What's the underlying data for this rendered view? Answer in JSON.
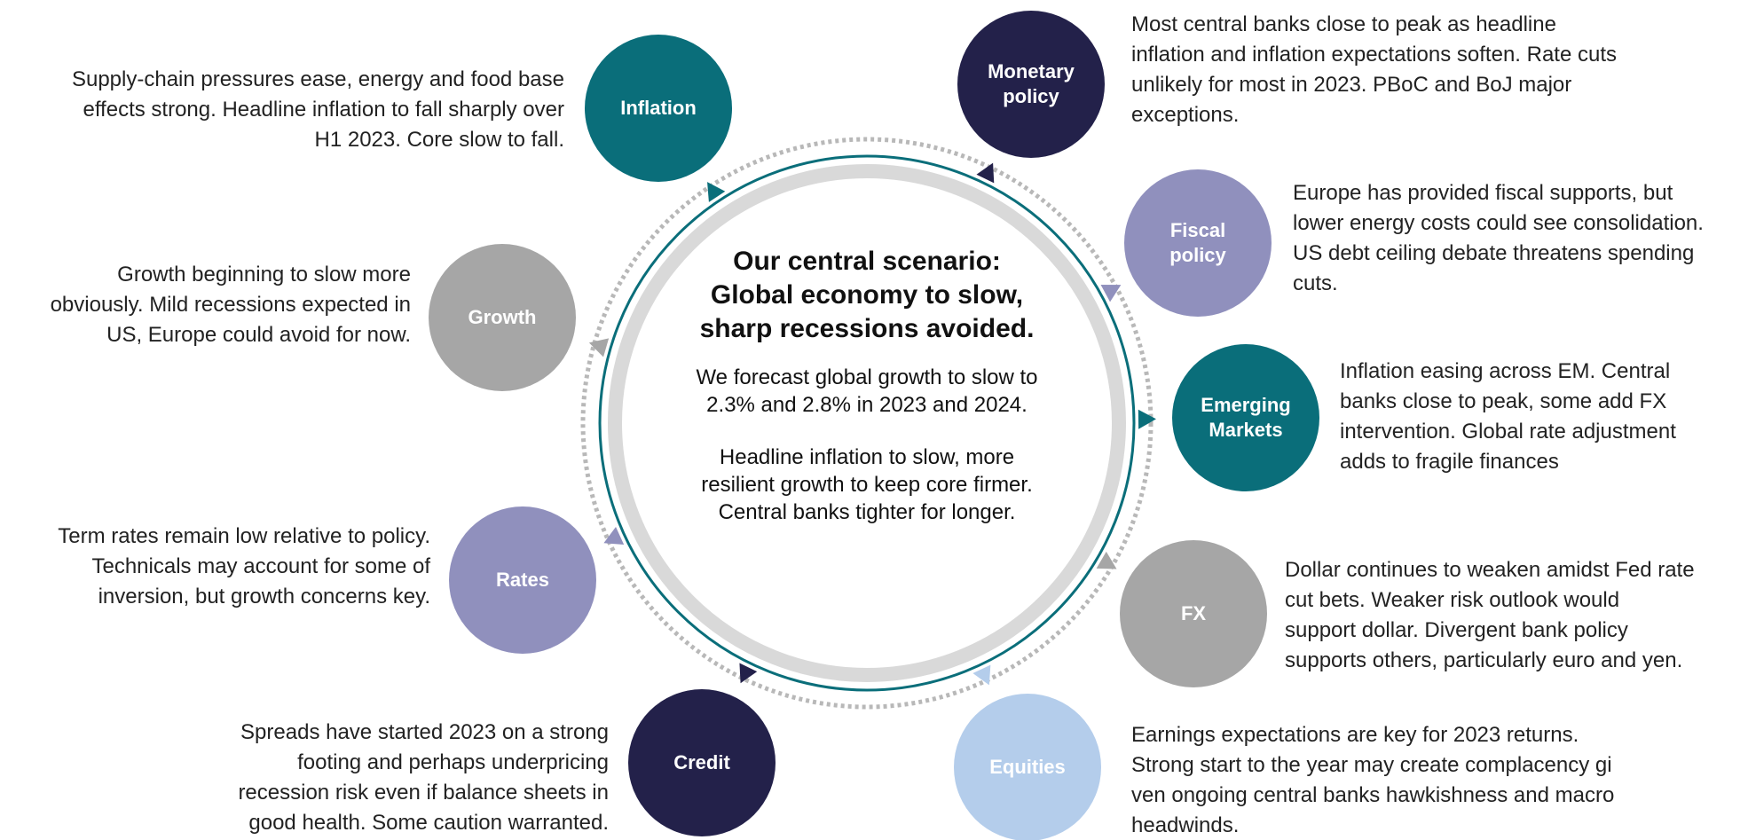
{
  "center": {
    "title": [
      "Our central scenario:",
      "Global economy to slow,",
      "sharp recessions avoided."
    ],
    "paragraphs": [
      [
        "We forecast global growth to slow to",
        "2.3% and 2.8% in 2023 and 2024."
      ],
      [
        "Headline inflation to slow, more",
        "resilient growth to keep core firmer.",
        "Central banks tighter for longer."
      ]
    ]
  },
  "nodes": [
    {
      "label": [
        "Inflation"
      ],
      "description": [
        "Supply-chain pressures ease, energy and food base",
        "effects strong. Headline inflation to fall sharply over",
        "H1 2023. Core slow to fall."
      ]
    },
    {
      "label": [
        "Monetary",
        "policy"
      ],
      "description": [
        "Most central banks close to peak as headline",
        "inflation and inflation expectations soften. Rate cuts",
        "unlikely for most in 2023. PBoC and BoJ major",
        "exceptions."
      ]
    },
    {
      "label": [
        "Fiscal",
        "policy"
      ],
      "description": [
        "Europe has provided fiscal supports, but",
        "lower energy costs could see consolidation.",
        "US debt ceiling debate threatens spending",
        "cuts."
      ]
    },
    {
      "label": [
        "Emerging",
        "Markets"
      ],
      "description": [
        "Inflation easing across EM. Central",
        "banks close to peak, some add FX",
        "intervention. Global rate adjustment",
        "adds to fragile finances"
      ]
    },
    {
      "label": [
        "FX"
      ],
      "description": [
        "Dollar continues to weaken amidst Fed rate",
        "cut bets. Weaker risk outlook would",
        "support dollar. Divergent bank policy",
        "supports others, particularly euro and yen."
      ]
    },
    {
      "label": [
        "Equities"
      ],
      "description": [
        "Earnings expectations are key for 2023 returns.",
        "Strong start to the year may create complacency gi",
        "ven ongoing central banks hawkishness and macro",
        "headwinds."
      ]
    },
    {
      "label": [
        "Credit"
      ],
      "description": [
        "Spreads have started 2023 on a strong",
        "footing and perhaps underpricing",
        "recession risk even if balance sheets in",
        "good health. Some caution warranted."
      ]
    },
    {
      "label": [
        "Rates"
      ],
      "description": [
        "Term rates remain low relative to policy.",
        "Technicals may account for some of",
        "inversion, but growth concerns key."
      ]
    },
    {
      "label": [
        "Growth"
      ],
      "description": [
        "Growth beginning to slow more",
        "obviously. Mild recessions expected in",
        "US, Europe could avoid for now."
      ]
    }
  ]
}
